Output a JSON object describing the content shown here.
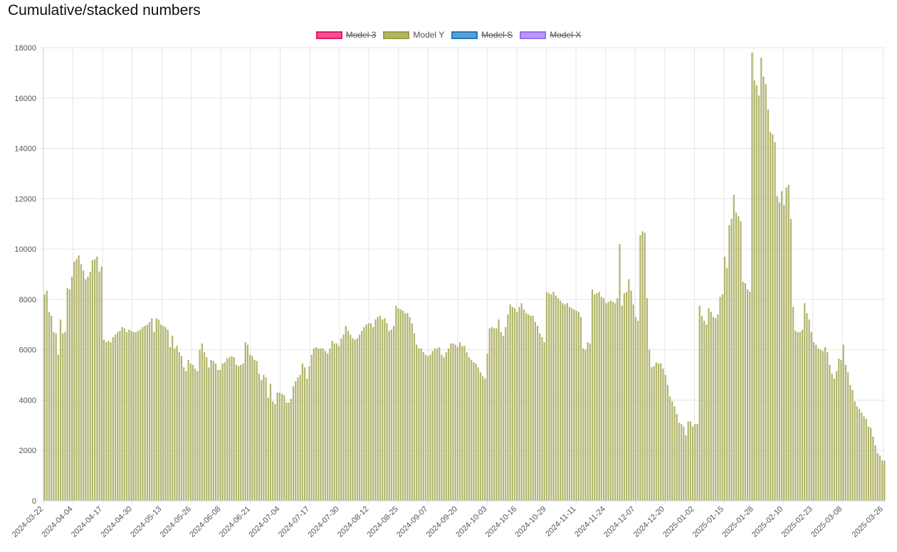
{
  "title": "Cumulative/stacked numbers",
  "legend": [
    {
      "label": "Model 3",
      "color": "#f0538d",
      "border": "#e8176f",
      "hidden": true
    },
    {
      "label": "Model Y",
      "color": "#b1b46c",
      "border": "#9c9f3a",
      "hidden": false
    },
    {
      "label": "Model S",
      "color": "#5a9fd4",
      "border": "#2278bd",
      "hidden": true
    },
    {
      "label": "Model X",
      "color": "#b59af5",
      "border": "#9c6ef0",
      "hidden": true
    }
  ],
  "chart_data": {
    "type": "bar",
    "stacked": true,
    "x_start": "2024-03-22",
    "x_end": "2025-03-27",
    "x_tick_labels": [
      "2024-03-22",
      "2024-04-04",
      "2024-04-17",
      "2024-04-30",
      "2024-05-13",
      "2024-05-26",
      "2024-06-08",
      "2024-06-21",
      "2024-07-04",
      "2024-07-17",
      "2024-07-30",
      "2024-08-12",
      "2024-08-25",
      "2024-09-07",
      "2024-09-20",
      "2024-10-03",
      "2024-10-16",
      "2024-10-29",
      "2024-11-11",
      "2024-11-24",
      "2024-12-07",
      "2024-12-20",
      "2025-01-02",
      "2025-01-15",
      "2025-01-28",
      "2025-02-10",
      "2025-02-23",
      "2025-03-08",
      "2025-03-26"
    ],
    "ylim": [
      0,
      18000
    ],
    "y_ticks": [
      0,
      2000,
      4000,
      6000,
      8000,
      10000,
      12000,
      14000,
      16000,
      18000
    ],
    "grid": true,
    "legend_position": "top",
    "series": [
      {
        "name": "Model Y",
        "color": "#b1b46c",
        "values": [
          8200,
          8350,
          7500,
          7350,
          6700,
          6650,
          5800,
          7200,
          6650,
          6700,
          8450,
          8400,
          8900,
          9500,
          9600,
          9750,
          9400,
          9150,
          8800,
          8900,
          9100,
          9550,
          9600,
          9700,
          9100,
          9300,
          6400,
          6300,
          6350,
          6300,
          6500,
          6600,
          6700,
          6750,
          6900,
          6850,
          6700,
          6800,
          6750,
          6700,
          6700,
          6750,
          6800,
          6900,
          6950,
          7000,
          7100,
          7250,
          6700,
          7250,
          7200,
          7000,
          6950,
          6900,
          6800,
          6100,
          6550,
          6050,
          6150,
          5900,
          5750,
          5300,
          5150,
          5600,
          5450,
          5400,
          5250,
          5150,
          6000,
          6250,
          5900,
          5700,
          5300,
          5600,
          5550,
          5450,
          5200,
          5200,
          5450,
          5500,
          5650,
          5700,
          5750,
          5700,
          5400,
          5350,
          5400,
          5450,
          6300,
          6200,
          5800,
          5750,
          5600,
          5550,
          5050,
          4800,
          5000,
          4900,
          4100,
          4650,
          3950,
          3850,
          4300,
          4300,
          4250,
          4200,
          3900,
          3900,
          4050,
          4550,
          4750,
          4900,
          5000,
          5450,
          5300,
          4850,
          5350,
          5800,
          6050,
          6100,
          6050,
          6050,
          6050,
          5950,
          5850,
          6050,
          6350,
          6250,
          6250,
          6150,
          6450,
          6600,
          6950,
          6750,
          6600,
          6450,
          6400,
          6450,
          6600,
          6750,
          6900,
          7000,
          7050,
          7050,
          6900,
          7200,
          7300,
          7350,
          7200,
          7250,
          7050,
          6750,
          6800,
          6950,
          7750,
          7650,
          7600,
          7550,
          7450,
          7450,
          7300,
          7050,
          6650,
          6200,
          6050,
          6050,
          5900,
          5800,
          5750,
          5800,
          5950,
          6050,
          6050,
          6100,
          5800,
          5700,
          5900,
          6050,
          6250,
          6250,
          6200,
          6100,
          6300,
          6150,
          6150,
          5900,
          5700,
          5600,
          5500,
          5450,
          5300,
          5100,
          4950,
          4850,
          5850,
          6850,
          6900,
          6850,
          6850,
          7200,
          6700,
          6550,
          6900,
          7400,
          7800,
          7700,
          7650,
          7500,
          7700,
          7850,
          7600,
          7450,
          7400,
          7350,
          7350,
          7100,
          6950,
          6650,
          6500,
          6300,
          8300,
          8250,
          8200,
          8300,
          8150,
          8050,
          7950,
          7850,
          7800,
          7850,
          7700,
          7650,
          7600,
          7550,
          7500,
          7300,
          6050,
          6000,
          6300,
          6250,
          8400,
          8200,
          8250,
          8300,
          8100,
          8050,
          7850,
          7900,
          7950,
          7900,
          7850,
          8050,
          10200,
          7750,
          8250,
          8300,
          8800,
          8350,
          7800,
          7300,
          7150,
          10550,
          10700,
          10650,
          8050,
          6000,
          5300,
          5350,
          5500,
          5450,
          5450,
          5250,
          5000,
          4600,
          4150,
          3950,
          3750,
          3450,
          3100,
          3050,
          2950,
          2600,
          3150,
          3150,
          2950,
          3050,
          3050,
          7750,
          7350,
          7150,
          7000,
          7650,
          7500,
          7300,
          7250,
          7400,
          8100,
          8200,
          9700,
          9250,
          10950,
          11200,
          12150,
          11450,
          11300,
          11100,
          8700,
          8650,
          8400,
          8300,
          17800,
          16700,
          16500,
          16100,
          17600,
          16850,
          16550,
          15550,
          14650,
          14550,
          14250,
          12100,
          11850,
          12300,
          11750,
          12450,
          12550,
          11200,
          7700,
          6750,
          6700,
          6700,
          6800,
          7850,
          7450,
          7200,
          6700,
          6300,
          6200,
          6050,
          6000,
          5950,
          6100,
          5900,
          5400,
          5050,
          4850,
          5150,
          5650,
          5600,
          6200,
          5400,
          5100,
          4600,
          4400,
          3950,
          3750,
          3650,
          3500,
          3350,
          3250,
          2950,
          2900,
          2550,
          2200,
          1900,
          1800,
          1600,
          1600
        ]
      },
      {
        "name": "Model 3",
        "hidden": true
      },
      {
        "name": "Model S",
        "hidden": true
      },
      {
        "name": "Model X",
        "hidden": true
      }
    ]
  }
}
